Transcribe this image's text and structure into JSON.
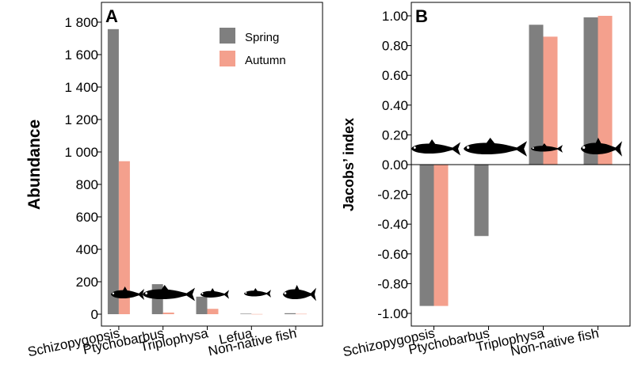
{
  "colors": {
    "spring": "#7f7f7f",
    "autumn": "#f4a08d",
    "fish": "#000000"
  },
  "chart_data": [
    {
      "type": "bar",
      "panel_label": "A",
      "title": "",
      "xlabel": "",
      "ylabel": "Abundance",
      "ylim": [
        0,
        1850
      ],
      "yticks": [
        0,
        200,
        400,
        600,
        800,
        1000,
        1200,
        1400,
        1600,
        1800
      ],
      "ytick_labels": [
        "0",
        "200",
        "400",
        "600",
        "800",
        "1 000",
        "1 200",
        "1 400",
        "1 600",
        "1 800"
      ],
      "categories": [
        "Schizopygopsis",
        "Ptychobarbus",
        "Triplophysa",
        "Lefua",
        "Non-native fish"
      ],
      "series": [
        {
          "name": "Spring",
          "values": [
            1757,
            185,
            108,
            3,
            6
          ]
        },
        {
          "name": "Autumn",
          "values": [
            943,
            10,
            33,
            1,
            2
          ]
        }
      ],
      "legend": {
        "position": "top-right",
        "entries": [
          "Spring",
          "Autumn"
        ]
      }
    },
    {
      "type": "bar",
      "panel_label": "B",
      "title": "",
      "xlabel": "",
      "ylabel": "Jacobs’ index",
      "ylim": [
        -1.1,
        1.1
      ],
      "yticks": [
        -1.0,
        -0.8,
        -0.6,
        -0.4,
        -0.2,
        0.0,
        0.2,
        0.4,
        0.6,
        0.8,
        1.0
      ],
      "ytick_labels": [
        "-1.00",
        "-0.80",
        "-0.60",
        "-0.40",
        "-0.20",
        "0.00",
        "0.20",
        "0.40",
        "0.60",
        "0.80",
        "1.00"
      ],
      "categories": [
        "Schizopygopsis",
        "Ptychobarbus",
        "Triplophysa",
        "Non-native fish"
      ],
      "series": [
        {
          "name": "Spring",
          "values": [
            -0.95,
            -0.48,
            0.94,
            0.99
          ]
        },
        {
          "name": "Autumn",
          "values": [
            -0.95,
            null,
            0.86,
            1.0
          ]
        }
      ],
      "reference_line": 0
    }
  ]
}
